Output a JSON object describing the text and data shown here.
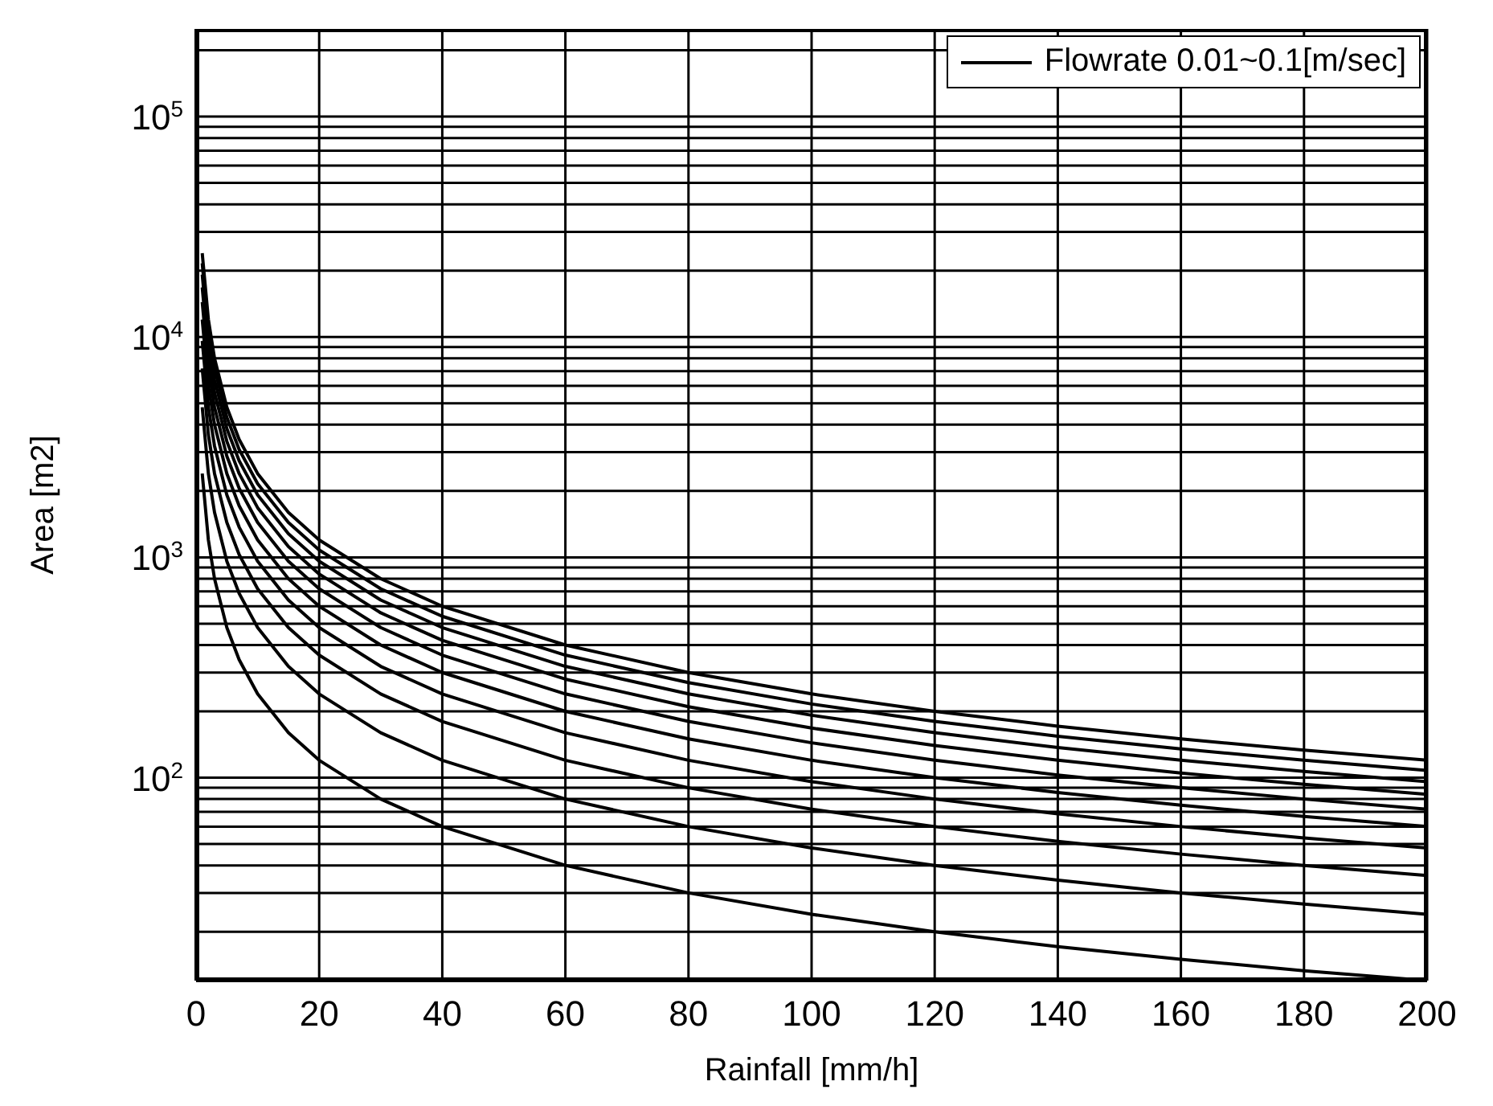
{
  "chart_data": {
    "type": "line",
    "xlabel": "Rainfall [mm/h]",
    "ylabel": "Area [m2]",
    "x": [
      1,
      2,
      3,
      5,
      7,
      10,
      15,
      20,
      30,
      40,
      60,
      80,
      100,
      120,
      140,
      160,
      180,
      200
    ],
    "series": [
      {
        "name": "Flowrate 0.01~0.1[m/sec]",
        "color": "#000000",
        "values": [
          2400,
          1200,
          800,
          480,
          343,
          240,
          160,
          120,
          80,
          60,
          40,
          30,
          24,
          20,
          17.1,
          15,
          13.3,
          12
        ]
      },
      {
        "color": "#000000",
        "values": [
          4800,
          2400,
          1600,
          960,
          686,
          480,
          320,
          240,
          160,
          120,
          80,
          60,
          48,
          40,
          34.3,
          30,
          26.7,
          24
        ]
      },
      {
        "color": "#000000",
        "values": [
          7200,
          3600,
          2400,
          1440,
          1029,
          720,
          480,
          360,
          240,
          180,
          120,
          90,
          72,
          60,
          51.4,
          45,
          40,
          36
        ]
      },
      {
        "color": "#000000",
        "values": [
          9600,
          4800,
          3200,
          1920,
          1371,
          960,
          640,
          480,
          320,
          240,
          160,
          120,
          96,
          80,
          68.6,
          60,
          53.3,
          48
        ]
      },
      {
        "color": "#000000",
        "values": [
          12000,
          6000,
          4000,
          2400,
          1714,
          1200,
          800,
          600,
          400,
          300,
          200,
          150,
          120,
          100,
          85.7,
          75,
          66.7,
          60
        ]
      },
      {
        "color": "#000000",
        "values": [
          14400,
          7200,
          4800,
          2880,
          2057,
          1440,
          960,
          720,
          480,
          360,
          240,
          180,
          144,
          120,
          102.9,
          90,
          80,
          72
        ]
      },
      {
        "color": "#000000",
        "values": [
          16800,
          8400,
          5600,
          3360,
          2400,
          1680,
          1120,
          840,
          560,
          420,
          280,
          210,
          168,
          140,
          120,
          105,
          93.3,
          84
        ]
      },
      {
        "color": "#000000",
        "values": [
          19200,
          9600,
          6400,
          3840,
          2743,
          1920,
          1280,
          960,
          640,
          480,
          320,
          240,
          192,
          160,
          137.1,
          120,
          106.7,
          96
        ]
      },
      {
        "color": "#000000",
        "values": [
          21600,
          10800,
          7200,
          4320,
          3086,
          2160,
          1440,
          1080,
          720,
          540,
          360,
          270,
          216,
          180,
          154.3,
          135,
          120,
          108
        ]
      },
      {
        "color": "#000000",
        "values": [
          24000,
          12000,
          8000,
          4800,
          3429,
          2400,
          1600,
          1200,
          800,
          600,
          400,
          300,
          240,
          200,
          171.4,
          150,
          133.3,
          120
        ]
      }
    ],
    "xlim": [
      0,
      200
    ],
    "xticks": [
      0,
      20,
      40,
      60,
      80,
      100,
      120,
      140,
      160,
      180,
      200
    ],
    "ylim": [
      12,
      250000
    ],
    "yticks": [
      {
        "value": 100,
        "label": "10$^{2}$"
      },
      {
        "value": 1000,
        "label": "10$^{3}$"
      },
      {
        "value": 10000,
        "label": "10$^{4}$"
      },
      {
        "value": 100000,
        "label": "10$^{5}$"
      }
    ],
    "log": "y",
    "grid": true,
    "legend": "top right",
    "marker": "none",
    "line_style": "solid"
  }
}
